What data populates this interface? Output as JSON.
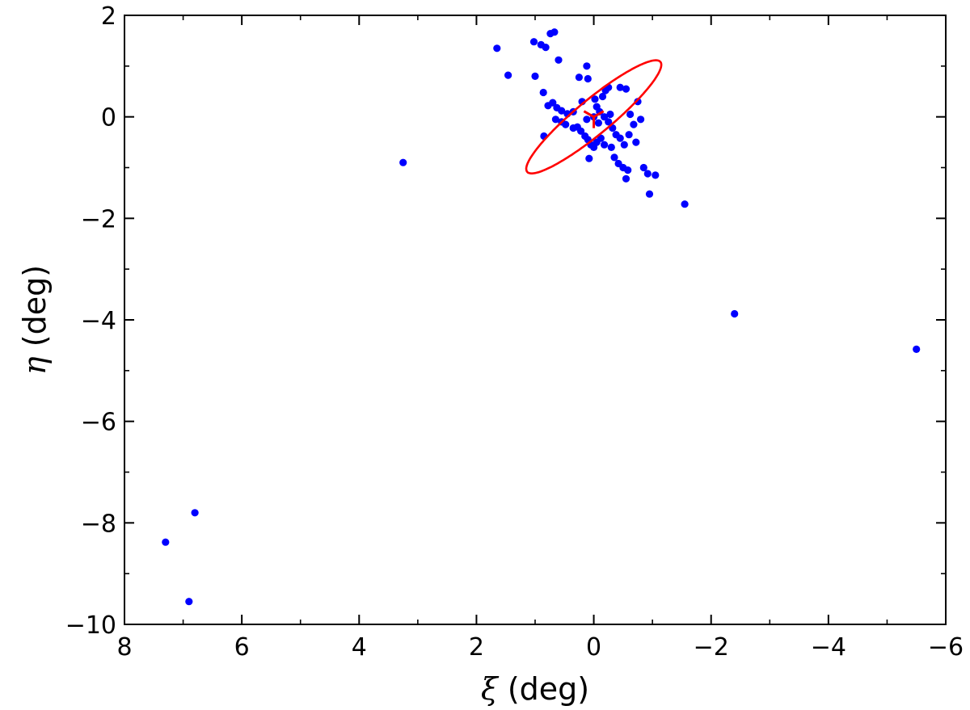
{
  "chart_data": {
    "type": "scatter",
    "title": "",
    "xlabel": {
      "symbol": "ξ",
      "unit": " (deg)"
    },
    "ylabel": {
      "symbol": "η",
      "unit": " (deg)"
    },
    "xlim": [
      8,
      -6
    ],
    "ylim": [
      -10,
      2
    ],
    "x_inverted": true,
    "xticks": [
      8,
      6,
      4,
      2,
      0,
      -2,
      -4,
      -6
    ],
    "xtick_labels": [
      "8",
      "6",
      "4",
      "2",
      "0",
      "−2",
      "−4",
      "−6"
    ],
    "x_minor_ticks": [
      7,
      5,
      3,
      1,
      -1,
      -3,
      -5
    ],
    "yticks": [
      -10,
      -8,
      -6,
      -4,
      -2,
      0,
      2
    ],
    "ytick_labels": [
      "−10",
      "−8",
      "−6",
      "−4",
      "−2",
      "0",
      "2"
    ],
    "y_minor_ticks": [
      -9,
      -7,
      -5,
      -3,
      -1,
      1
    ],
    "grid": false,
    "legend": "none",
    "colors": {
      "points": "#0000ff",
      "ellipse": "#ff0000",
      "axes": "#000000"
    },
    "series": [
      {
        "marker": "circle",
        "points": [
          [
            1.65,
            1.35
          ],
          [
            1.46,
            0.82
          ],
          [
            1.02,
            1.48
          ],
          [
            0.9,
            1.42
          ],
          [
            0.82,
            1.37
          ],
          [
            0.74,
            1.64
          ],
          [
            0.67,
            1.67
          ],
          [
            0.6,
            1.12
          ],
          [
            1.0,
            0.8
          ],
          [
            0.86,
            0.48
          ],
          [
            0.78,
            0.22
          ],
          [
            0.7,
            0.28
          ],
          [
            0.63,
            0.18
          ],
          [
            0.55,
            0.12
          ],
          [
            0.45,
            0.06
          ],
          [
            0.85,
            -0.38
          ],
          [
            0.65,
            -0.05
          ],
          [
            0.55,
            -0.1
          ],
          [
            0.48,
            -0.15
          ],
          [
            0.35,
            -0.22
          ],
          [
            0.28,
            -0.2
          ],
          [
            0.22,
            -0.28
          ],
          [
            0.15,
            -0.38
          ],
          [
            0.1,
            -0.45
          ],
          [
            0.05,
            -0.55
          ],
          [
            0.0,
            -0.6
          ],
          [
            -0.05,
            -0.5
          ],
          [
            -0.12,
            -0.42
          ],
          [
            -0.18,
            -0.55
          ],
          [
            0.08,
            -0.82
          ],
          [
            0.25,
            0.78
          ],
          [
            0.1,
            0.75
          ],
          [
            0.12,
            1.0
          ],
          [
            -0.02,
            0.35
          ],
          [
            -0.05,
            0.2
          ],
          [
            -0.1,
            0.1
          ],
          [
            -0.15,
            0.4
          ],
          [
            -0.2,
            0.52
          ],
          [
            -0.25,
            0.58
          ],
          [
            -0.18,
            0.0
          ],
          [
            -0.25,
            -0.1
          ],
          [
            -0.32,
            -0.22
          ],
          [
            -0.38,
            -0.35
          ],
          [
            -0.45,
            -0.42
          ],
          [
            -0.52,
            -0.55
          ],
          [
            -0.35,
            -0.8
          ],
          [
            -0.42,
            -0.92
          ],
          [
            -0.5,
            -1.0
          ],
          [
            -0.58,
            -1.05
          ],
          [
            -0.55,
            -1.22
          ],
          [
            -0.45,
            0.58
          ],
          [
            -0.55,
            0.55
          ],
          [
            -0.75,
            0.3
          ],
          [
            -0.8,
            -0.05
          ],
          [
            -0.72,
            -0.5
          ],
          [
            -0.85,
            -1.0
          ],
          [
            -0.92,
            -1.12
          ],
          [
            -1.05,
            -1.15
          ],
          [
            -0.95,
            -1.52
          ],
          [
            -0.62,
            0.05
          ],
          [
            -0.68,
            -0.15
          ],
          [
            -0.6,
            -0.35
          ],
          [
            -0.28,
            0.05
          ],
          [
            -0.3,
            -0.6
          ],
          [
            0.0,
            0.0
          ],
          [
            0.12,
            -0.05
          ],
          [
            0.35,
            0.1
          ],
          [
            0.2,
            0.3
          ],
          [
            -0.08,
            -0.12
          ],
          [
            -1.55,
            -1.72
          ],
          [
            3.25,
            -0.9
          ],
          [
            -2.4,
            -3.88
          ],
          [
            -5.5,
            -4.58
          ],
          [
            6.8,
            -7.8
          ],
          [
            7.3,
            -8.38
          ],
          [
            6.9,
            -9.55
          ]
        ]
      }
    ],
    "ellipse": {
      "center": [
        0.0,
        0.0
      ],
      "semi_major": 1.57,
      "semi_minor": 0.32,
      "angle_deg": -44
    },
    "center_marker": {
      "x": 0.0,
      "y": 0.0,
      "shape": "tri-down"
    }
  }
}
